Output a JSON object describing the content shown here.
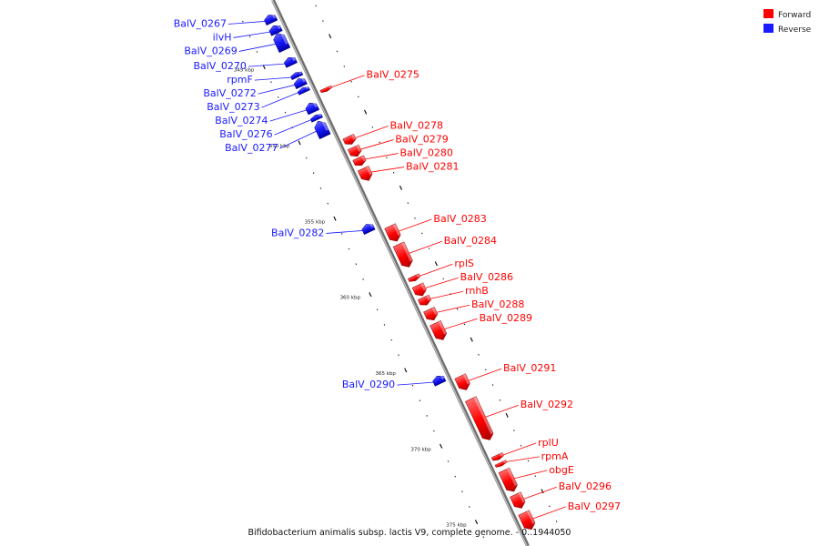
{
  "colors": {
    "forward": "#ff0000",
    "reverse": "#1a1aff",
    "axis": "#9a9a9a"
  },
  "legend": {
    "forward_label": "Forward",
    "reverse_label": "Reverse"
  },
  "caption": "Bifidobacterium animalis subsp. lactis V9, complete genome. - 0..1944050",
  "ticks": [
    {
      "label": "345 kbp",
      "kbp": 345
    },
    {
      "label": "350 kbp",
      "kbp": 350
    },
    {
      "label": "355 kbp",
      "kbp": 355
    },
    {
      "label": "360 kbp",
      "kbp": 360
    },
    {
      "label": "365 kbp",
      "kbp": 365
    },
    {
      "label": "370 kbp",
      "kbp": 370
    },
    {
      "label": "375 kbp",
      "kbp": 375
    }
  ],
  "reverse_genes": [
    {
      "label": "BalV_0267",
      "start_kbp": 342.3,
      "end_kbp": 342.8
    },
    {
      "label": "ilvH",
      "start_kbp": 343.0,
      "end_kbp": 343.5
    },
    {
      "label": "BalV_0269",
      "start_kbp": 343.5,
      "end_kbp": 344.6
    },
    {
      "label": "BalV_0270",
      "start_kbp": 345.1,
      "end_kbp": 345.6
    },
    {
      "label": "rpmF",
      "start_kbp": 346.1,
      "end_kbp": 346.4
    },
    {
      "label": "BalV_0272",
      "start_kbp": 346.5,
      "end_kbp": 347.0
    },
    {
      "label": "BalV_0273",
      "start_kbp": 347.1,
      "end_kbp": 347.4
    },
    {
      "label": "BalV_0274",
      "start_kbp": 348.1,
      "end_kbp": 348.7
    },
    {
      "label": "BalV_0276",
      "start_kbp": 348.9,
      "end_kbp": 349.2
    },
    {
      "label": "BalV_0277",
      "start_kbp": 349.3,
      "end_kbp": 350.3
    },
    {
      "label": "BalV_0282",
      "start_kbp": 356.1,
      "end_kbp": 356.6
    },
    {
      "label": "BalV_0290",
      "start_kbp": 366.1,
      "end_kbp": 366.6
    }
  ],
  "forward_genes": [
    {
      "label": "BalV_0275",
      "start_kbp": 347.7,
      "end_kbp": 347.9
    },
    {
      "label": "BalV_0278",
      "start_kbp": 350.9,
      "end_kbp": 351.4
    },
    {
      "label": "BalV_0279",
      "start_kbp": 351.6,
      "end_kbp": 352.2
    },
    {
      "label": "BalV_0280",
      "start_kbp": 352.3,
      "end_kbp": 352.8
    },
    {
      "label": "BalV_0281",
      "start_kbp": 353.0,
      "end_kbp": 353.8
    },
    {
      "label": "BalV_0283",
      "start_kbp": 356.8,
      "end_kbp": 357.8
    },
    {
      "label": "BalV_0284",
      "start_kbp": 358.0,
      "end_kbp": 359.5
    },
    {
      "label": "rplS",
      "start_kbp": 360.1,
      "end_kbp": 360.4
    },
    {
      "label": "BalV_0286",
      "start_kbp": 360.7,
      "end_kbp": 361.4
    },
    {
      "label": "rnhB",
      "start_kbp": 361.5,
      "end_kbp": 362.0
    },
    {
      "label": "BalV_0288",
      "start_kbp": 362.3,
      "end_kbp": 363.0
    },
    {
      "label": "BalV_0289",
      "start_kbp": 363.2,
      "end_kbp": 364.3
    },
    {
      "label": "BalV_0291",
      "start_kbp": 366.7,
      "end_kbp": 367.6
    },
    {
      "label": "BalV_0292",
      "start_kbp": 368.2,
      "end_kbp": 370.9
    },
    {
      "label": "rplU",
      "start_kbp": 371.9,
      "end_kbp": 372.2
    },
    {
      "label": "rpmA",
      "start_kbp": 372.4,
      "end_kbp": 372.6
    },
    {
      "label": "obgE",
      "start_kbp": 372.9,
      "end_kbp": 374.3
    },
    {
      "label": "BalV_0296",
      "start_kbp": 374.5,
      "end_kbp": 375.4
    },
    {
      "label": "BalV_0297",
      "start_kbp": 375.7,
      "end_kbp": 376.8
    }
  ]
}
